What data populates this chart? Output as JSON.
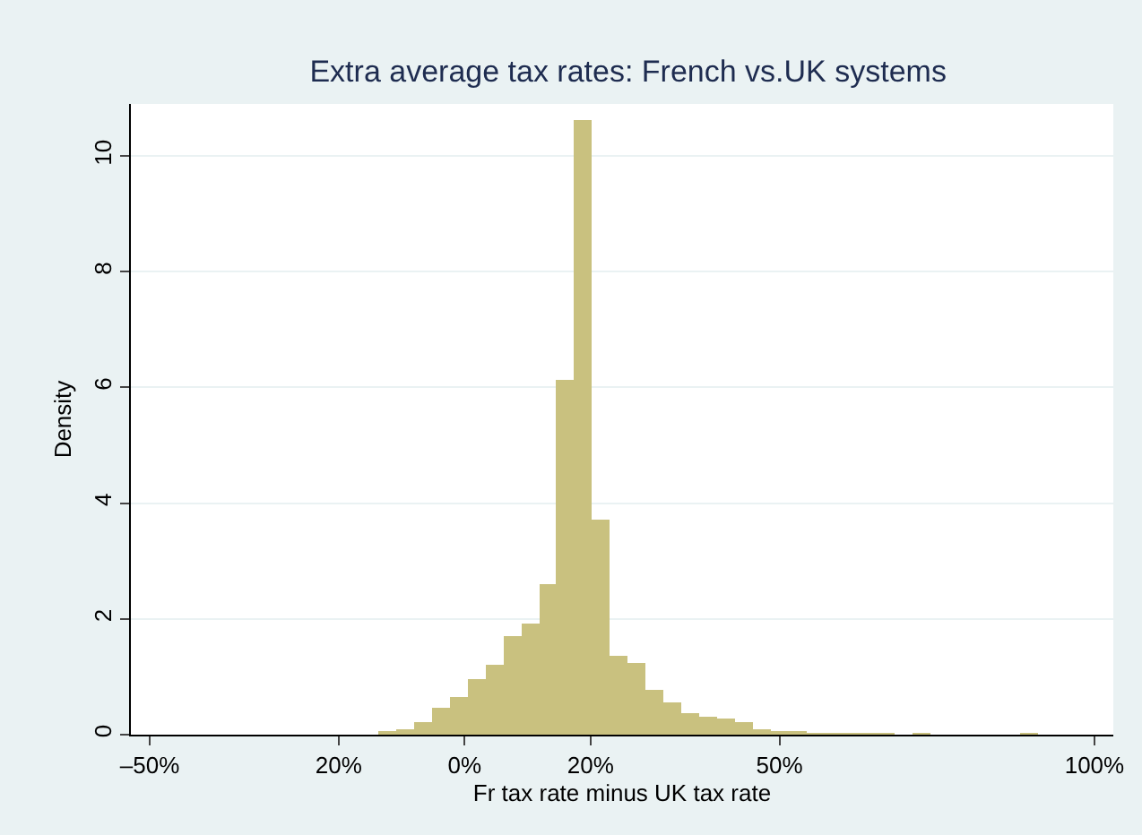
{
  "chart_data": {
    "type": "histogram",
    "title": "Extra average tax rates: French vs.UK systems",
    "xlabel": "Fr tax rate minus UK tax rate",
    "ylabel": "Density",
    "bins": [
      -13.7,
      -10.87,
      -8.04,
      -5.21,
      -2.38,
      0.45,
      3.28,
      6.11,
      8.94,
      11.77,
      14.6,
      17.43,
      20.26,
      23.09,
      25.92,
      28.75,
      31.58,
      34.41,
      37.24,
      40.07,
      42.9,
      45.73,
      48.56,
      51.39,
      54.22,
      57.05,
      59.88,
      62.71,
      65.54,
      68.37,
      71.2,
      74.03,
      76.86,
      79.69,
      82.52,
      85.35,
      88.18,
      91.01
    ],
    "values": [
      0.04,
      0.08,
      0.21,
      0.45,
      0.64,
      0.97,
      1.21,
      1.7,
      1.92,
      2.6,
      6.13,
      10.62,
      3.72,
      1.36,
      1.23,
      0.77,
      0.55,
      0.38,
      0.31,
      0.28,
      0.23,
      0.09,
      0.05,
      0.05,
      0.03,
      0.02,
      0.02,
      0.02,
      0.03,
      0,
      0.02,
      0,
      0,
      0,
      0,
      0,
      0.02
    ],
    "color": "#c9c17f",
    "xlim": [
      -53,
      103
    ],
    "xticks": [
      {
        "value": -50,
        "label": "–50%"
      },
      {
        "value": -20,
        "label": "20%"
      },
      {
        "value": 0,
        "label": "0%"
      },
      {
        "value": 20,
        "label": "20%"
      },
      {
        "value": 50,
        "label": "50%"
      },
      {
        "value": 100,
        "label": "100%"
      }
    ],
    "ylim": [
      0,
      10.9
    ],
    "yticks": [
      0,
      2,
      4,
      6,
      8,
      10
    ],
    "grid": "y"
  }
}
